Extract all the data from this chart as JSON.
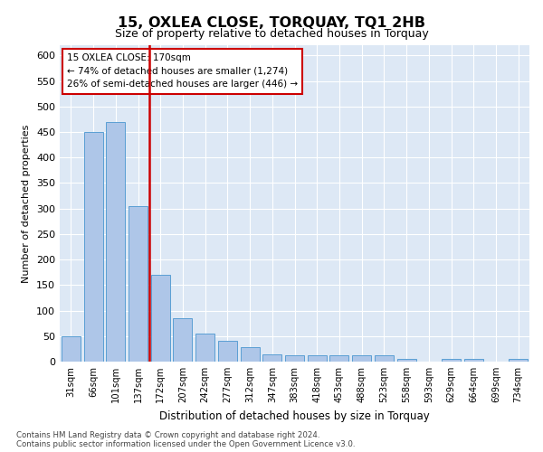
{
  "title": "15, OXLEA CLOSE, TORQUAY, TQ1 2HB",
  "subtitle": "Size of property relative to detached houses in Torquay",
  "xlabel": "Distribution of detached houses by size in Torquay",
  "ylabel": "Number of detached properties",
  "categories": [
    "31sqm",
    "66sqm",
    "101sqm",
    "137sqm",
    "172sqm",
    "207sqm",
    "242sqm",
    "277sqm",
    "312sqm",
    "347sqm",
    "383sqm",
    "418sqm",
    "453sqm",
    "488sqm",
    "523sqm",
    "558sqm",
    "593sqm",
    "629sqm",
    "664sqm",
    "699sqm",
    "734sqm"
  ],
  "values": [
    50,
    450,
    470,
    305,
    170,
    85,
    55,
    40,
    28,
    15,
    13,
    13,
    13,
    12,
    12,
    5,
    0,
    5,
    5,
    0,
    5
  ],
  "bar_color": "#aec6e8",
  "bar_edge_color": "#5a9fd4",
  "red_line_x": 3.5,
  "highlight_color": "#cc0000",
  "annotation_title": "15 OXLEA CLOSE: 170sqm",
  "annotation_line1": "← 74% of detached houses are smaller (1,274)",
  "annotation_line2": "26% of semi-detached houses are larger (446) →",
  "ylim": [
    0,
    620
  ],
  "yticks": [
    0,
    50,
    100,
    150,
    200,
    250,
    300,
    350,
    400,
    450,
    500,
    550,
    600
  ],
  "bg_color": "#dde8f5",
  "grid_color": "#ffffff",
  "footer_line1": "Contains HM Land Registry data © Crown copyright and database right 2024.",
  "footer_line2": "Contains public sector information licensed under the Open Government Licence v3.0."
}
